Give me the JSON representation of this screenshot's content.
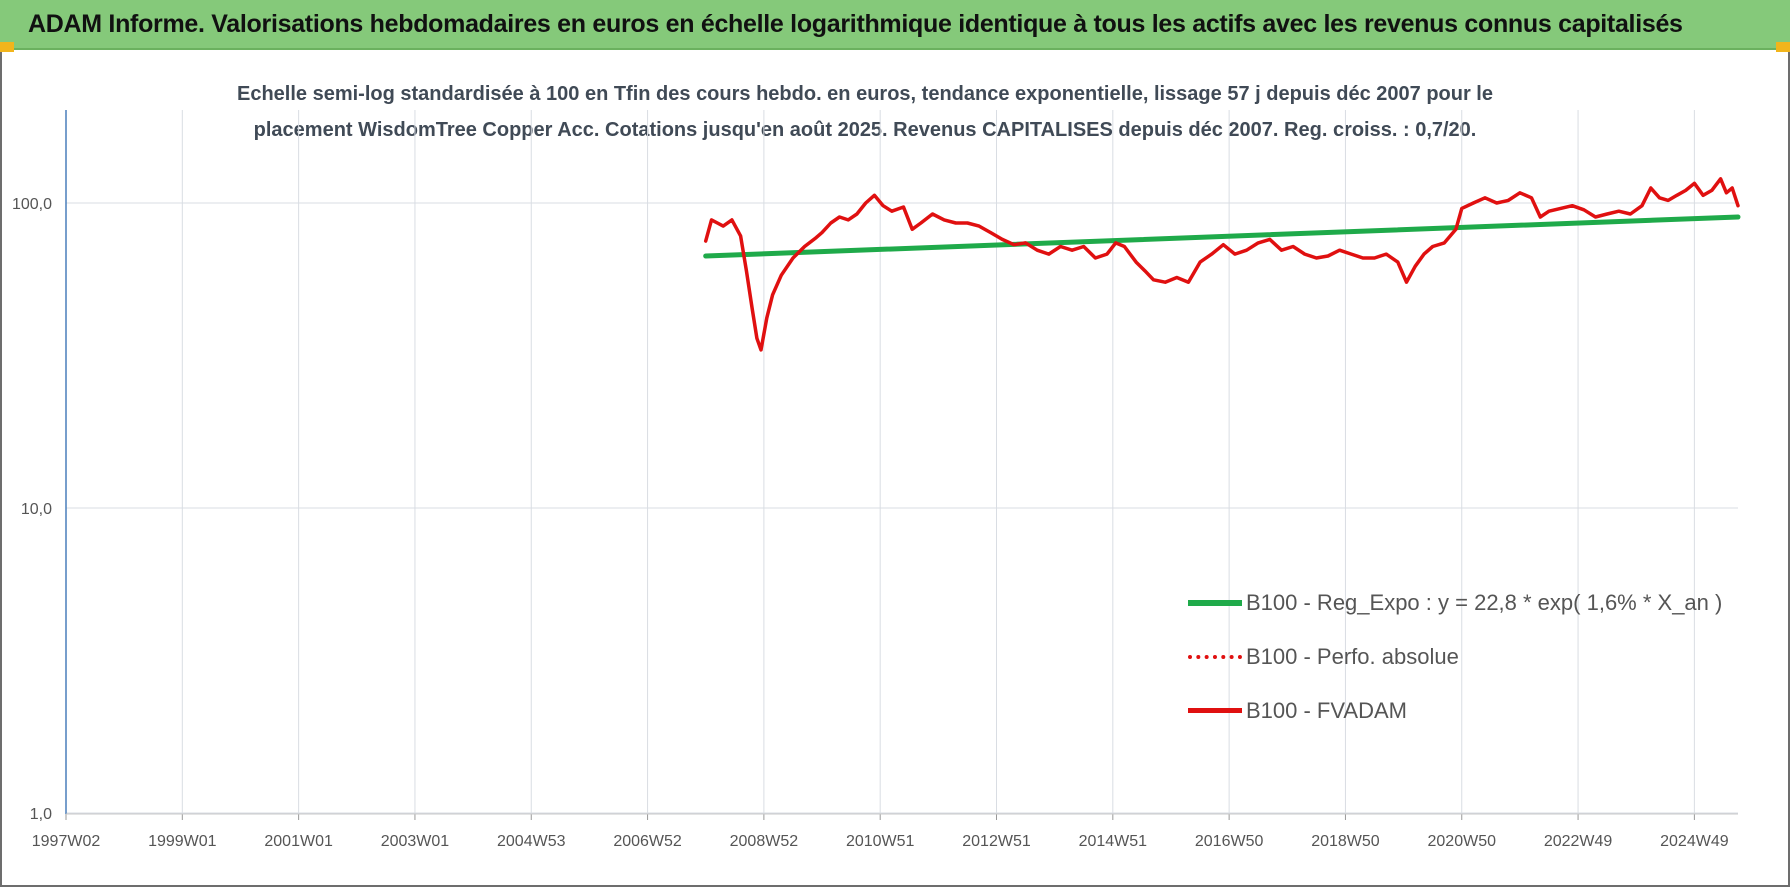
{
  "header": {
    "title": "ADAM Informe. Valorisations hebdomadaires en euros en échelle logarithmique identique à tous les actifs avec les revenus connus capitalisés"
  },
  "colors": {
    "header_bg": "#85c97a",
    "corner": "#f2b51c",
    "trend": "#1faa4a",
    "perf": "#e01010",
    "fvadam": "#e01010",
    "grid": "#d9dde3",
    "axis": "#4a7ebb"
  },
  "chart_data": {
    "type": "line",
    "title_line1": "Echelle semi-log standardisée à 100 en Tfin des cours hebdo. en euros, tendance exponentielle, lissage 57 j depuis déc 2007 pour le",
    "title_line2": "placement WisdomTree Copper Acc. Cotations jusqu'en août 2025. Revenus CAPITALISES depuis déc 2007. Reg. croiss. : 0,7/20.",
    "y_scale": "log",
    "ylim": [
      1,
      200
    ],
    "xlim": [
      1997.0,
      2025.75
    ],
    "y_ticks": [
      {
        "value": 1,
        "label": "1,0"
      },
      {
        "value": 10,
        "label": "10,0"
      },
      {
        "value": 100,
        "label": "100,0"
      }
    ],
    "x_ticks": [
      {
        "pos": 1997.0,
        "label": "1997W02"
      },
      {
        "pos": 1999.0,
        "label": "1999W01"
      },
      {
        "pos": 2001.0,
        "label": "2001W01"
      },
      {
        "pos": 2003.0,
        "label": "2003W01"
      },
      {
        "pos": 2005.0,
        "label": "2004W53"
      },
      {
        "pos": 2007.0,
        "label": "2006W52"
      },
      {
        "pos": 2009.0,
        "label": "2008W52"
      },
      {
        "pos": 2011.0,
        "label": "2010W51"
      },
      {
        "pos": 2013.0,
        "label": "2012W51"
      },
      {
        "pos": 2015.0,
        "label": "2014W51"
      },
      {
        "pos": 2017.0,
        "label": "2016W50"
      },
      {
        "pos": 2019.0,
        "label": "2018W50"
      },
      {
        "pos": 2021.0,
        "label": "2020W50"
      },
      {
        "pos": 2023.0,
        "label": "2022W49"
      },
      {
        "pos": 2025.0,
        "label": "2024W49"
      }
    ],
    "legend_position": "bottom-right",
    "series": [
      {
        "name": "B100 - Reg_Expo : y = 22,8 * exp( 1,6% *  X_an )",
        "style": "solid-green",
        "x": [
          2008.0,
          2025.75
        ],
        "y": [
          67,
          90
        ]
      },
      {
        "name": "B100 - Perfo. absolue",
        "style": "dotted-red",
        "x": [],
        "y": []
      },
      {
        "name": "B100 - FVADAM",
        "style": "solid-red",
        "x": [
          2008.0,
          2008.1,
          2008.2,
          2008.3,
          2008.45,
          2008.6,
          2008.7,
          2008.8,
          2008.88,
          2008.95,
          2009.05,
          2009.15,
          2009.3,
          2009.5,
          2009.7,
          2009.9,
          2010.0,
          2010.15,
          2010.3,
          2010.45,
          2010.6,
          2010.75,
          2010.9,
          2011.05,
          2011.2,
          2011.4,
          2011.55,
          2011.7,
          2011.9,
          2012.1,
          2012.3,
          2012.5,
          2012.7,
          2012.9,
          2013.1,
          2013.3,
          2013.5,
          2013.7,
          2013.9,
          2014.1,
          2014.3,
          2014.5,
          2014.7,
          2014.9,
          2015.05,
          2015.2,
          2015.4,
          2015.55,
          2015.7,
          2015.9,
          2016.1,
          2016.3,
          2016.5,
          2016.7,
          2016.9,
          2017.1,
          2017.3,
          2017.5,
          2017.7,
          2017.9,
          2018.1,
          2018.3,
          2018.5,
          2018.7,
          2018.9,
          2019.1,
          2019.3,
          2019.5,
          2019.7,
          2019.9,
          2020.05,
          2020.2,
          2020.35,
          2020.5,
          2020.7,
          2020.9,
          2021.0,
          2021.2,
          2021.4,
          2021.6,
          2021.8,
          2022.0,
          2022.2,
          2022.35,
          2022.5,
          2022.7,
          2022.9,
          2023.1,
          2023.3,
          2023.5,
          2023.7,
          2023.9,
          2024.1,
          2024.25,
          2024.4,
          2024.55,
          2024.7,
          2024.85,
          2025.0,
          2025.15,
          2025.3,
          2025.45,
          2025.55,
          2025.65,
          2025.75
        ],
        "y": [
          75,
          88,
          86,
          84,
          88,
          78,
          60,
          45,
          36,
          33,
          42,
          50,
          58,
          66,
          72,
          77,
          80,
          86,
          90,
          88,
          92,
          100,
          106,
          98,
          94,
          97,
          82,
          86,
          92,
          88,
          86,
          86,
          84,
          80,
          76,
          73,
          74,
          70,
          68,
          72,
          70,
          72,
          66,
          68,
          74,
          72,
          64,
          60,
          56,
          55,
          57,
          55,
          64,
          68,
          73,
          68,
          70,
          74,
          76,
          70,
          72,
          68,
          66,
          67,
          70,
          68,
          66,
          66,
          68,
          64,
          55,
          62,
          68,
          72,
          74,
          82,
          96,
          100,
          104,
          100,
          102,
          108,
          104,
          90,
          94,
          96,
          98,
          95,
          90,
          92,
          94,
          92,
          98,
          112,
          104,
          102,
          106,
          110,
          116,
          106,
          110,
          120,
          108,
          112,
          98
        ]
      }
    ]
  }
}
